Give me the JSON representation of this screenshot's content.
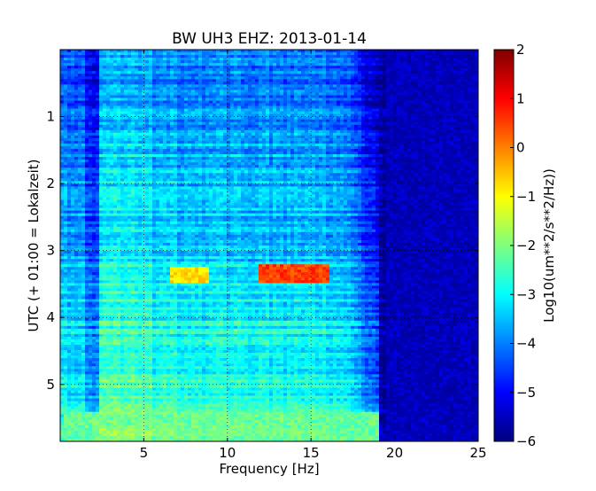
{
  "chart_data": {
    "type": "heatmap",
    "title": "BW UH3 EHZ: 2013-01-14",
    "xlabel": "Frequency [Hz]",
    "ylabel": "UTC (+ 01:00 = Lokalzeit)",
    "xlim": [
      0,
      25
    ],
    "ylim": [
      5.85,
      0
    ],
    "x_ticks": [
      5,
      10,
      15,
      20,
      25
    ],
    "y_ticks": [
      1,
      2,
      3,
      4,
      5
    ],
    "grid": true,
    "colorbar": {
      "label": "Log10(um**2/s**2/Hz))",
      "range": [
        -6,
        2
      ],
      "ticks": [
        2,
        1,
        0,
        -1,
        -2,
        -3,
        -4,
        -5,
        -6
      ],
      "colormap": "jet"
    },
    "notable_features": [
      {
        "x_range": [
          11.8,
          16
        ],
        "y_range": [
          3.2,
          3.5
        ],
        "level": 0.5
      },
      {
        "x_range": [
          6.5,
          8.8
        ],
        "y_range": [
          3.25,
          3.5
        ],
        "level": -0.8
      },
      {
        "x_range": [
          0.2,
          19
        ],
        "y_range": [
          5.4,
          5.85
        ],
        "level": -2.2
      },
      {
        "x_range": [
          19.5,
          25
        ],
        "y_range": [
          0,
          5.85
        ],
        "level": -5.6
      }
    ]
  }
}
